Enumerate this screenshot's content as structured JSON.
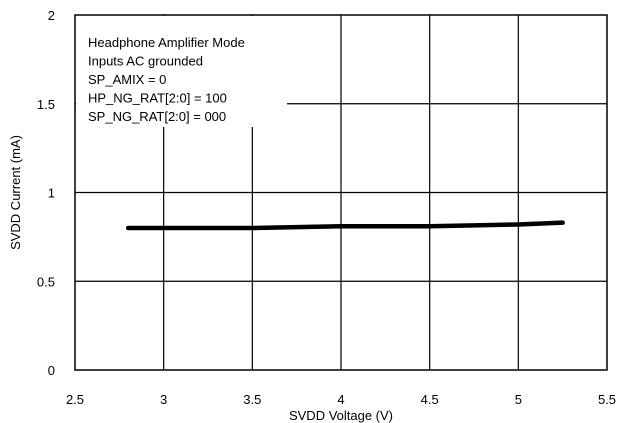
{
  "chart_data": {
    "type": "line",
    "title": "",
    "xlabel": "SVDD Voltage (V)",
    "ylabel": "SVDD Current (mA)",
    "xlim": [
      2.5,
      5.5
    ],
    "ylim": [
      0,
      2
    ],
    "xticks": [
      2.5,
      3,
      3.5,
      4,
      4.5,
      5,
      5.5
    ],
    "xtick_labels": [
      "2.5",
      "3",
      "3.5",
      "4",
      "4.5",
      "5",
      "5.5"
    ],
    "yticks": [
      0,
      0.5,
      1,
      1.5,
      2
    ],
    "ytick_labels": [
      "0",
      "0.5",
      "1",
      "1.5",
      "2"
    ],
    "grid": true,
    "series": [
      {
        "x": [
          2.8,
          3.0,
          3.25,
          3.5,
          3.75,
          4.0,
          4.25,
          4.5,
          4.75,
          5.0,
          5.25
        ],
        "y": [
          0.8,
          0.8,
          0.8,
          0.8,
          0.805,
          0.81,
          0.81,
          0.81,
          0.815,
          0.82,
          0.83
        ],
        "color": "#000000"
      }
    ],
    "annotation_lines": [
      "Headphone Amplifier Mode",
      "Inputs AC grounded",
      "SP_AMIX = 0",
      "HP_NG_RAT[2:0] = 100",
      "SP_NG_RAT[2:0] = 000"
    ]
  }
}
